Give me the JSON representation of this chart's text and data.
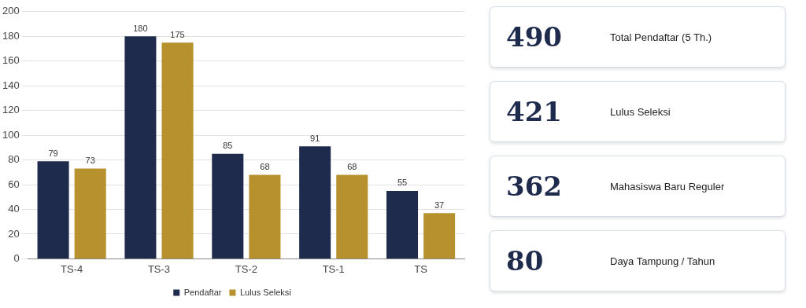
{
  "chart_data": [
    {
      "type": "bar",
      "categories": [
        "TS-4",
        "TS-3",
        "TS-2",
        "TS-1",
        "TS"
      ],
      "series": [
        {
          "name": "Pendaftar",
          "color": "#1f2b4d",
          "values": [
            79,
            180,
            85,
            91,
            55
          ]
        },
        {
          "name": "Lulus Seleksi",
          "color": "#b8912f",
          "values": [
            73,
            175,
            68,
            68,
            37
          ]
        }
      ],
      "ylim": [
        0,
        200
      ],
      "yticks": [
        0,
        20,
        40,
        60,
        80,
        100,
        120,
        140,
        160,
        180,
        200
      ],
      "grid": "y",
      "legend": "bottom",
      "data_labels": true
    },
    {
      "type": "other",
      "categories": [
        "Total Pendaftar (5 Th.)",
        "Lulus Seleksi",
        "Mahasiswa Baru Reguler",
        "Daya Tampung / Tahun"
      ],
      "values": [
        490,
        421,
        362,
        80
      ],
      "data_labels": true
    }
  ]
}
